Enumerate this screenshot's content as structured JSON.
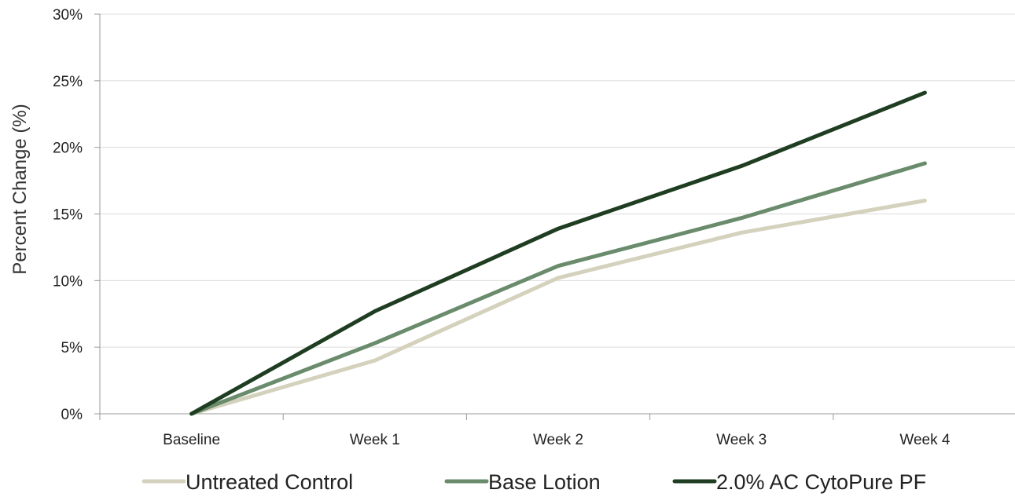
{
  "chart_data": {
    "type": "line",
    "title": "",
    "xlabel": "",
    "ylabel": "Percent Change (%)",
    "categories": [
      "Baseline",
      "Week 1",
      "Week 2",
      "Week 3",
      "Week 4"
    ],
    "ylim": [
      0,
      30
    ],
    "yticks": [
      0,
      5,
      10,
      15,
      20,
      25,
      30
    ],
    "ytick_labels": [
      "0%",
      "5%",
      "10%",
      "15%",
      "20%",
      "25%",
      "30%"
    ],
    "grid": true,
    "legend_position": "bottom",
    "series": [
      {
        "name": "Untreated Control",
        "color": "#d4d2bd",
        "values": [
          0,
          4.0,
          10.2,
          13.6,
          16.0
        ]
      },
      {
        "name": "Base Lotion",
        "color": "#6a8c6c",
        "values": [
          0,
          5.3,
          11.1,
          14.7,
          18.8
        ]
      },
      {
        "name": "2.0% AC CytoPure PF",
        "color": "#1e3d21",
        "values": [
          0,
          7.7,
          13.9,
          18.6,
          24.1
        ]
      }
    ]
  }
}
